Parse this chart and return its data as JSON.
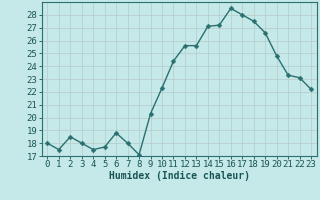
{
  "xlabel": "Humidex (Indice chaleur)",
  "x": [
    0,
    1,
    2,
    3,
    4,
    5,
    6,
    7,
    8,
    9,
    10,
    11,
    12,
    13,
    14,
    15,
    16,
    17,
    18,
    19,
    20,
    21,
    22,
    23
  ],
  "y": [
    18.0,
    17.5,
    18.5,
    18.0,
    17.5,
    17.7,
    18.8,
    18.0,
    17.1,
    20.3,
    22.3,
    24.4,
    25.6,
    25.6,
    27.1,
    27.2,
    28.5,
    28.0,
    27.5,
    26.6,
    24.8,
    23.3,
    23.1,
    22.2
  ],
  "ylim": [
    17,
    29
  ],
  "yticks": [
    17,
    18,
    19,
    20,
    21,
    22,
    23,
    24,
    25,
    26,
    27,
    28
  ],
  "xlim": [
    -0.5,
    23.5
  ],
  "bg_color": "#c5e8e8",
  "line_color": "#2a7070",
  "grid_color": "#b8cece",
  "axis_color": "#2a7070",
  "tick_color": "#1a5555",
  "marker": "D",
  "marker_size": 2.5,
  "line_width": 1.0,
  "label_fontsize": 7,
  "tick_fontsize": 6.5
}
